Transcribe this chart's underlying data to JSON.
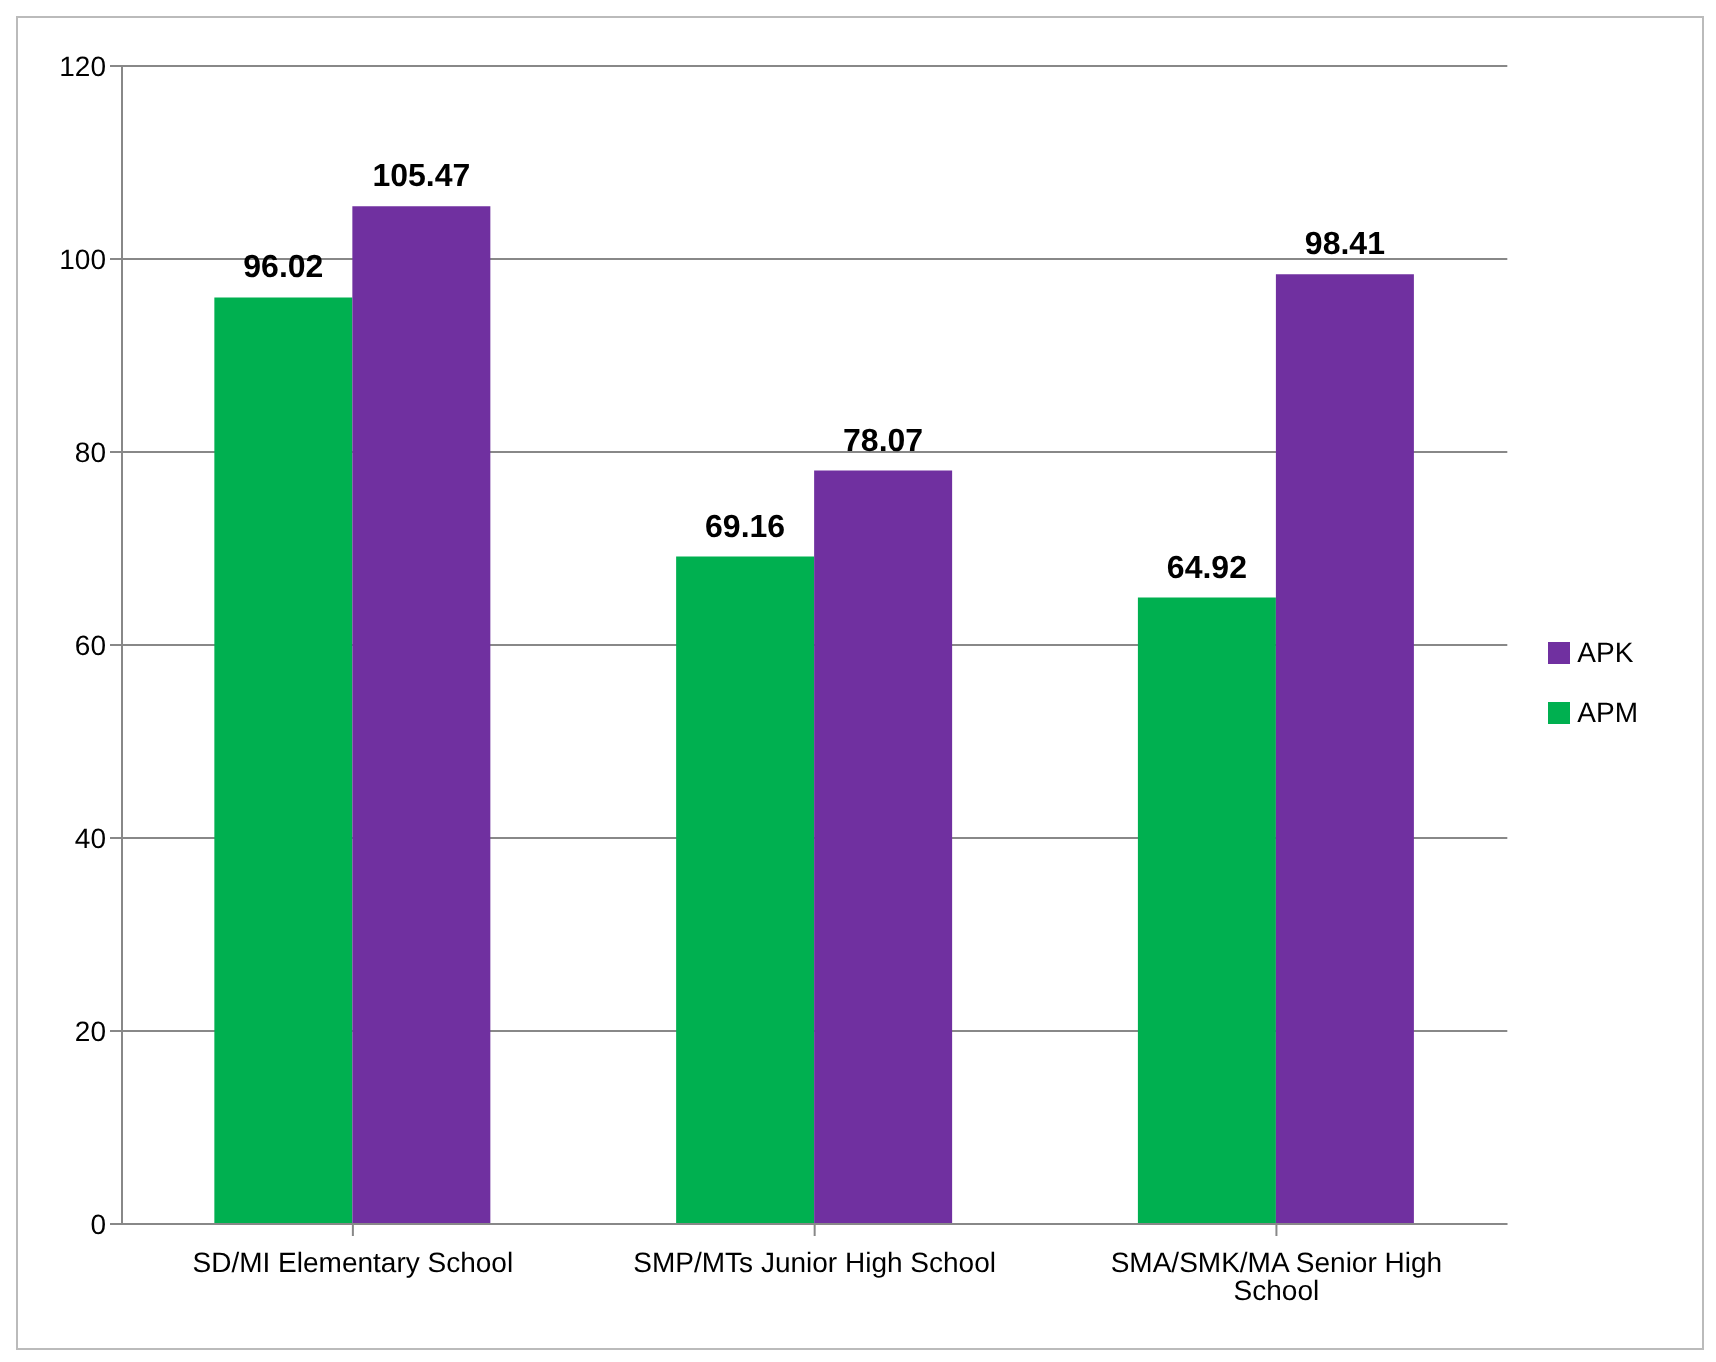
{
  "chart_data": {
    "type": "bar",
    "categories": [
      "SD/MI Elementary School",
      "SMP/MTs Junior High School",
      "SMA/SMK/MA Senior High School"
    ],
    "series": [
      {
        "name": "APM",
        "color": "#00b050",
        "values": [
          96.02,
          69.16,
          64.92
        ]
      },
      {
        "name": "APK",
        "color": "#7030a0",
        "values": [
          105.47,
          78.07,
          98.41
        ]
      }
    ],
    "ylim": [
      0,
      120
    ],
    "yticks": [
      0,
      20,
      40,
      60,
      80,
      100,
      120
    ],
    "grid": "y",
    "legend": "right",
    "data_labels": true
  }
}
